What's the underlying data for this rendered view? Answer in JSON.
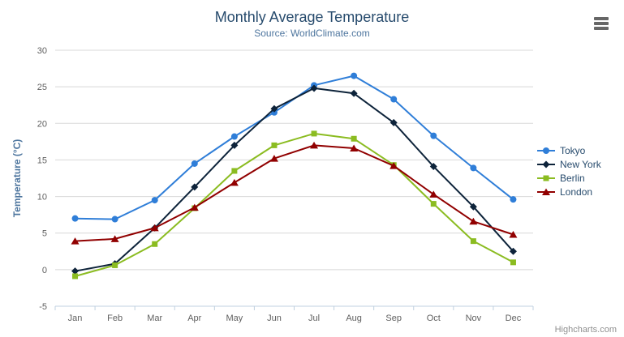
{
  "chart_data": {
    "type": "line",
    "title": "Monthly Average Temperature",
    "subtitle": "Source: WorldClimate.com",
    "credits": "Highcharts.com",
    "categories": [
      "Jan",
      "Feb",
      "Mar",
      "Apr",
      "May",
      "Jun",
      "Jul",
      "Aug",
      "Sep",
      "Oct",
      "Nov",
      "Dec"
    ],
    "xlabel": "",
    "ylabel": "Temperature (°C)",
    "ylim": [
      -5,
      30
    ],
    "ytick_interval": 5,
    "yticks": [
      -5,
      0,
      5,
      10,
      15,
      20,
      25,
      30
    ],
    "grid": true,
    "legend_position": "right",
    "series": [
      {
        "name": "Tokyo",
        "color": "#2f7ed8",
        "marker": "circle",
        "values": [
          7.0,
          6.9,
          9.5,
          14.5,
          18.2,
          21.5,
          25.2,
          26.5,
          23.3,
          18.3,
          13.9,
          9.6
        ]
      },
      {
        "name": "New York",
        "color": "#0d233a",
        "marker": "diamond",
        "values": [
          -0.2,
          0.8,
          5.7,
          11.3,
          17.0,
          22.0,
          24.8,
          24.1,
          20.1,
          14.1,
          8.6,
          2.5
        ]
      },
      {
        "name": "Berlin",
        "color": "#8bbc21",
        "marker": "square",
        "values": [
          -0.9,
          0.6,
          3.5,
          8.4,
          13.5,
          17.0,
          18.6,
          17.9,
          14.3,
          9.0,
          3.9,
          1.0
        ]
      },
      {
        "name": "London",
        "color": "#910000",
        "marker": "triangle",
        "values": [
          3.9,
          4.2,
          5.7,
          8.5,
          11.9,
          15.2,
          17.0,
          16.6,
          14.2,
          10.3,
          6.6,
          4.8
        ]
      }
    ]
  },
  "colors": {
    "title": "#274b6d",
    "subtitle": "#4d759e",
    "y_title": "#4d759e",
    "tick_label": "#606060",
    "grid": "#d8d8d8",
    "axis_line": "#c0d0e0",
    "legend_text": "#274b6d",
    "credits": "#909090",
    "menu_icon": "#666666"
  },
  "icons": {
    "menu": "hamburger-icon"
  }
}
